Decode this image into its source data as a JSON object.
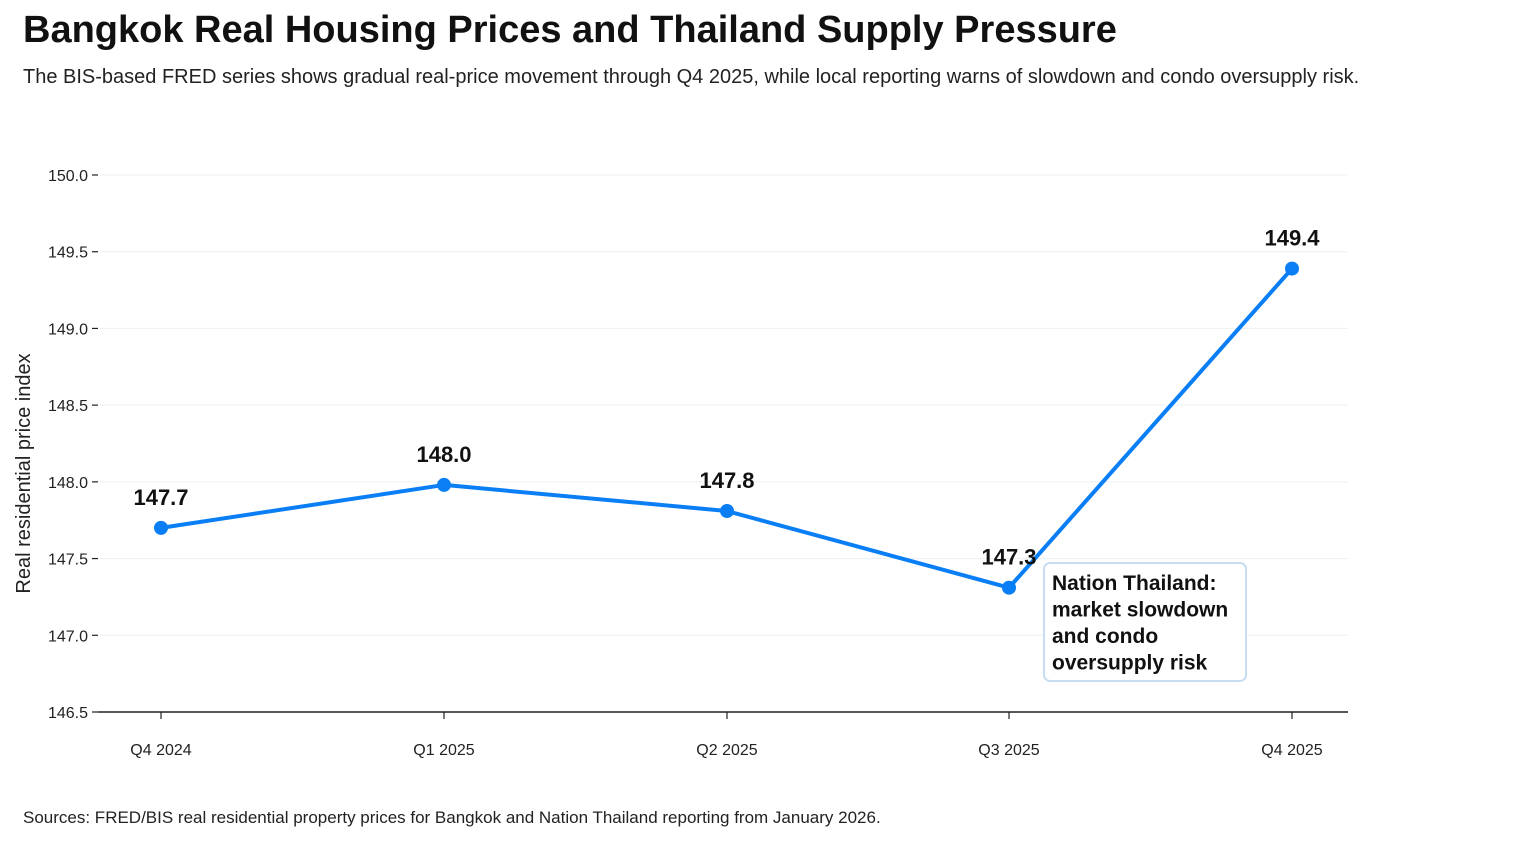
{
  "header": {
    "title": "Bangkok Real Housing Prices and Thailand Supply Pressure",
    "subtitle": "The BIS-based FRED series shows gradual real-price movement through Q4 2025, while local reporting warns of slowdown and condo oversupply risk."
  },
  "footer": {
    "source": "Sources: FRED/BIS real residential property prices for Bangkok and Nation Thailand reporting from January 2026."
  },
  "colors": {
    "line": "#0A7FF5",
    "grid": "#ECEFF3",
    "axis": "#222222",
    "annotation_border": "#C9DDF2"
  },
  "chart_data": {
    "type": "line",
    "title": "Bangkok Real Housing Prices and Thailand Supply Pressure",
    "xlabel": "",
    "ylabel": "Real residential price index",
    "categories": [
      "Q4 2024",
      "Q1 2025",
      "Q2 2025",
      "Q3 2025",
      "Q4 2025"
    ],
    "series": [
      {
        "values": [
          147.7,
          147.98,
          147.81,
          147.31,
          149.39
        ]
      }
    ],
    "data_labels": [
      "147.7",
      "148.0",
      "147.8",
      "147.3",
      "149.4"
    ],
    "ylim": [
      146.5,
      150.0
    ],
    "yticks": [
      146.5,
      147.0,
      147.5,
      148.0,
      148.5,
      149.0,
      149.5,
      150.0
    ],
    "ytick_labels": [
      "146.5",
      "147.0",
      "147.5",
      "148.0",
      "148.5",
      "149.0",
      "149.5",
      "150.0"
    ],
    "grid": true,
    "legend": "none",
    "annotation": {
      "category": "Q3 2025",
      "lines": [
        "Nation Thailand:",
        "market slowdown",
        "and condo",
        "oversupply risk"
      ]
    }
  }
}
